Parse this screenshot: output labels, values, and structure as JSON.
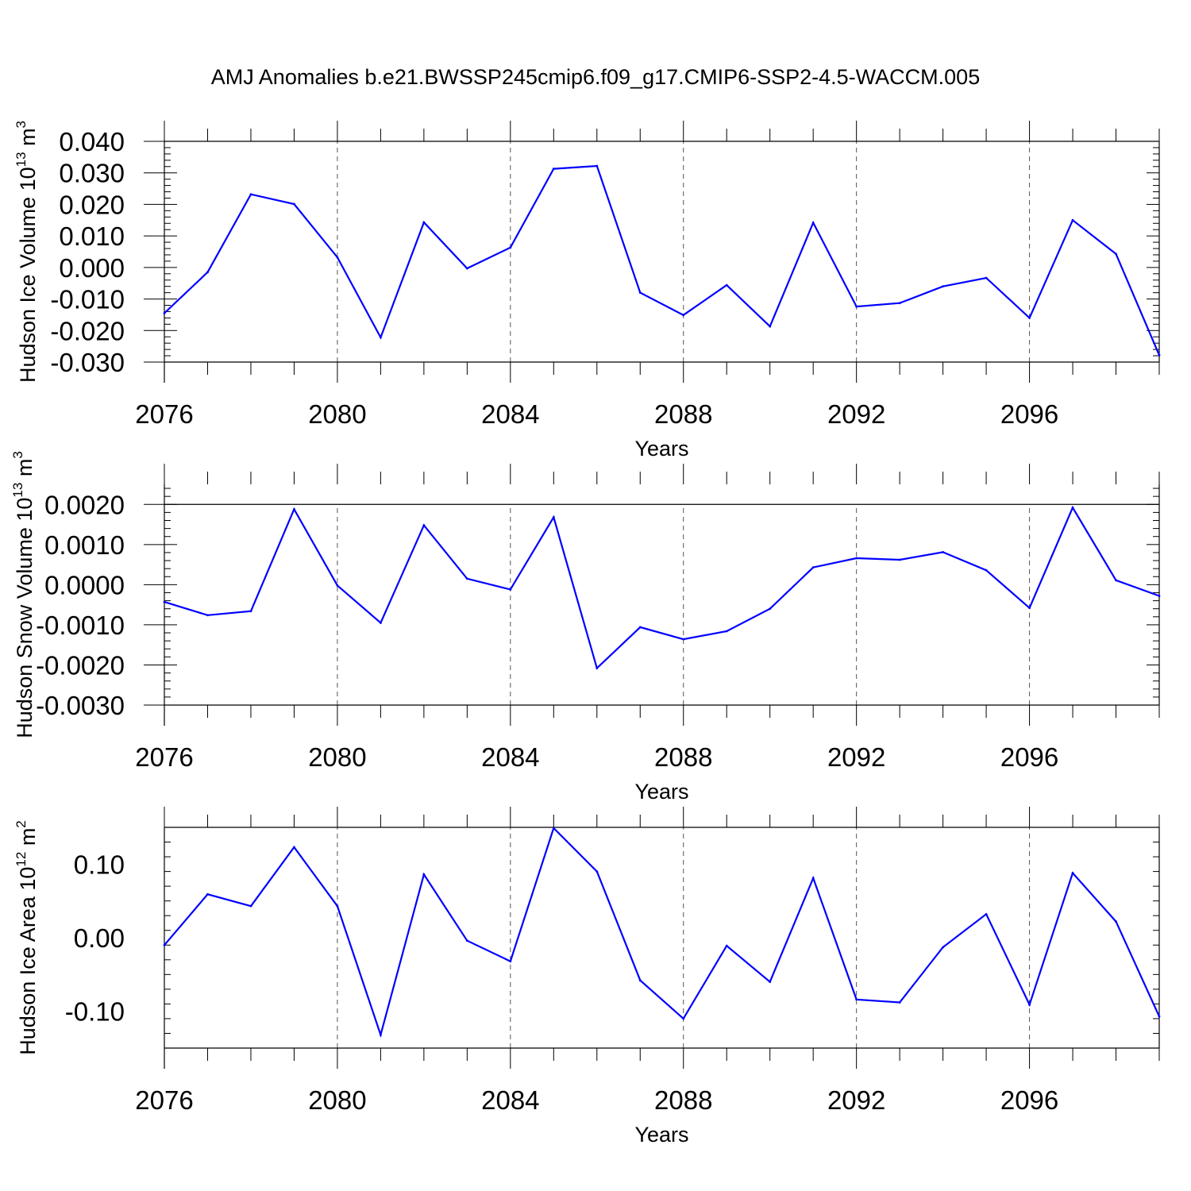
{
  "title": "AMJ Anomalies b.e21.BWSSP245cmip6.f09_g17.CMIP6-SSP2-4.5-WACCM.005",
  "colors": {
    "line": "#0000ff",
    "axes": "#000000",
    "grid": "#555555"
  },
  "chart_data": [
    {
      "type": "line",
      "ylabel": "Hudson Ice Volume 10",
      "ylabel_sup": "13",
      "ylabel_unit": " m",
      "ylabel_unit_sup": "3",
      "xlabel": "Years",
      "xlim": [
        2076,
        2099
      ],
      "ylim": [
        -0.03,
        0.04
      ],
      "x_ticks": [
        2076,
        2080,
        2084,
        2088,
        2092,
        2096
      ],
      "x_tick_labels": [
        "2076",
        "2080",
        "2084",
        "2088",
        "2092",
        "2096"
      ],
      "y_ticks": [
        -0.03,
        -0.02,
        -0.01,
        0.0,
        0.01,
        0.02,
        0.03,
        0.04
      ],
      "y_tick_labels": [
        "-0.030",
        "-0.020",
        "-0.010",
        "0.000",
        "0.010",
        "0.020",
        "0.030",
        "0.040"
      ],
      "y_minor_step": 0.002,
      "grid_x": true,
      "x": [
        2076,
        2077,
        2078,
        2079,
        2080,
        2081,
        2082,
        2083,
        2084,
        2085,
        2086,
        2087,
        2088,
        2089,
        2090,
        2091,
        2092,
        2093,
        2094,
        2095,
        2096,
        2097,
        2098,
        2099
      ],
      "series": [
        {
          "values": [
            -0.0145,
            -0.0015,
            0.0232,
            0.0201,
            0.0032,
            -0.0222,
            0.0143,
            -0.0003,
            0.0063,
            0.0313,
            0.0322,
            -0.008,
            -0.0151,
            -0.0056,
            -0.0187,
            0.0142,
            -0.0124,
            -0.0113,
            -0.006,
            -0.0033,
            -0.016,
            0.015,
            0.0043,
            -0.0278
          ]
        }
      ]
    },
    {
      "type": "line",
      "ylabel": "Hudson Snow Volume 10",
      "ylabel_sup": "13",
      "ylabel_unit": " m",
      "ylabel_unit_sup": "3",
      "xlabel": "Years",
      "xlim": [
        2076,
        2099
      ],
      "ylim": [
        -0.003,
        0.002
      ],
      "y_top": 0.0025,
      "x_ticks": [
        2076,
        2080,
        2084,
        2088,
        2092,
        2096
      ],
      "x_tick_labels": [
        "2076",
        "2080",
        "2084",
        "2088",
        "2092",
        "2096"
      ],
      "y_ticks": [
        -0.003,
        -0.002,
        -0.001,
        0.0,
        0.001,
        0.002
      ],
      "y_tick_labels": [
        "-0.0030",
        "-0.0020",
        "-0.0010",
        "0.0000",
        "0.0010",
        "0.0020"
      ],
      "y_minor_step": 0.0002,
      "grid_x": true,
      "x": [
        2076,
        2077,
        2078,
        2079,
        2080,
        2081,
        2082,
        2083,
        2084,
        2085,
        2086,
        2087,
        2088,
        2089,
        2090,
        2091,
        2092,
        2093,
        2094,
        2095,
        2096,
        2097,
        2098,
        2099
      ],
      "series": [
        {
          "values": [
            -0.00043,
            -0.00076,
            -0.00066,
            0.00188,
            -2e-05,
            -0.00095,
            0.00148,
            0.00015,
            -0.00012,
            0.00168,
            -0.00208,
            -0.00106,
            -0.00136,
            -0.00116,
            -0.0006,
            0.00043,
            0.00066,
            0.00062,
            0.00081,
            0.00036,
            -0.00058,
            0.00192,
            0.00011,
            -0.00028
          ]
        }
      ]
    },
    {
      "type": "line",
      "ylabel": "Hudson Ice Area 10",
      "ylabel_sup": "12",
      "ylabel_unit": " m",
      "ylabel_unit_sup": "2",
      "xlabel": "Years",
      "xlim": [
        2076,
        2099
      ],
      "ylim": [
        -0.15,
        0.15
      ],
      "x_ticks": [
        2076,
        2080,
        2084,
        2088,
        2092,
        2096
      ],
      "x_tick_labels": [
        "2076",
        "2080",
        "2084",
        "2088",
        "2092",
        "2096"
      ],
      "y_ticks": [
        -0.1,
        0.0,
        0.1
      ],
      "y_tick_labels": [
        "-0.10",
        "0.00",
        "0.10"
      ],
      "y_minor_step": 0.02,
      "grid_x": true,
      "x": [
        2076,
        2077,
        2078,
        2079,
        2080,
        2081,
        2082,
        2083,
        2084,
        2085,
        2086,
        2087,
        2088,
        2089,
        2090,
        2091,
        2092,
        2093,
        2094,
        2095,
        2096,
        2097,
        2098,
        2099
      ],
      "series": [
        {
          "values": [
            -0.01,
            0.059,
            0.043,
            0.123,
            0.043,
            -0.132,
            0.086,
            -0.004,
            -0.032,
            0.149,
            0.09,
            -0.058,
            -0.11,
            -0.011,
            -0.06,
            0.081,
            -0.084,
            -0.088,
            -0.013,
            0.032,
            -0.091,
            0.088,
            0.022,
            -0.107
          ]
        }
      ]
    }
  ]
}
